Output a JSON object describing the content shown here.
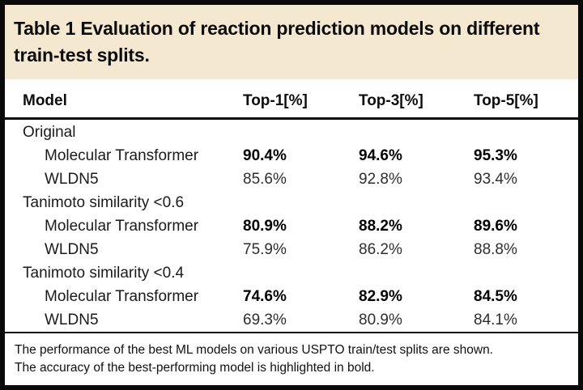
{
  "colors": {
    "banner_bg": "#f4e8d0",
    "border": "#0a0a0a",
    "text": "#111111"
  },
  "banner": {
    "title_line1": "Table 1 Evaluation of reaction prediction models on different",
    "title_line2": "train-test splits."
  },
  "table": {
    "columns": {
      "model": "Model",
      "top1": "Top-1[%]",
      "top3": "Top-3[%]",
      "top5": "Top-5[%]"
    },
    "rows": [
      {
        "type": "group",
        "label": "Original",
        "top1": "",
        "top3": "",
        "top5": ""
      },
      {
        "type": "model",
        "label": "Molecular Transformer",
        "best": true,
        "top1": "90.4%",
        "top3": "94.6%",
        "top5": "95.3%"
      },
      {
        "type": "model",
        "label": "WLDN5",
        "best": false,
        "top1": "85.6%",
        "top3": "92.8%",
        "top5": "93.4%"
      },
      {
        "type": "group",
        "label": "Tanimoto similarity <0.6",
        "top1": "",
        "top3": "",
        "top5": ""
      },
      {
        "type": "model",
        "label": "Molecular Transformer",
        "best": true,
        "top1": "80.9%",
        "top3": "88.2%",
        "top5": "89.6%"
      },
      {
        "type": "model",
        "label": "WLDN5",
        "best": false,
        "top1": "75.9%",
        "top3": "86.2%",
        "top5": "88.8%"
      },
      {
        "type": "group",
        "label": "Tanimoto similarity <0.4",
        "top1": "",
        "top3": "",
        "top5": ""
      },
      {
        "type": "model",
        "label": "Molecular Transformer",
        "best": true,
        "top1": "74.6%",
        "top3": "82.9%",
        "top5": "84.5%"
      },
      {
        "type": "model",
        "label": "WLDN5",
        "best": false,
        "top1": "69.3%",
        "top3": "80.9%",
        "top5": "84.1%"
      }
    ]
  },
  "footnote": {
    "line1": "The performance of the best ML models on various USPTO train/test splits are shown.",
    "line2": "The accuracy of the best-performing model is highlighted in bold."
  }
}
